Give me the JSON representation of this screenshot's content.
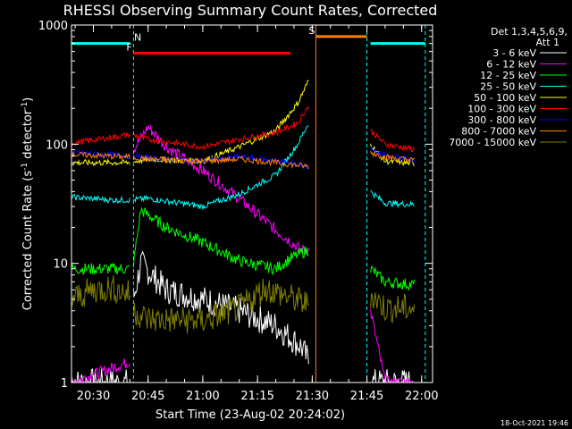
{
  "colors": {
    "background": "#000000",
    "axes": "#ffffff",
    "attenuator_bar": "#00ffff",
    "flare_bar": "#ff0000",
    "saa_bar": "#ff8000"
  },
  "chart_data": {
    "type": "line",
    "title": "RHESSI Observing Summary Count Rates, Corrected",
    "xlabel": "Start Time (23-Aug-02 20:24:02)",
    "ylabel": "Corrected Count Rate (s",
    "ylabel_sup1": "-1",
    "ylabel_mid": " detector",
    "ylabel_sup2": "-1",
    "ylabel_end": ")",
    "y_scale": "log",
    "ylim": [
      1,
      1000
    ],
    "xlim": [
      "20:24",
      "22:03"
    ],
    "x_ticks": [
      "20:30",
      "20:45",
      "21:00",
      "21:15",
      "21:30",
      "21:45",
      "22:00"
    ],
    "y_ticks": [
      "1",
      "10",
      "100",
      "1000"
    ],
    "legend_header": [
      "Det 1,3,4,5,6,9,",
      "Att 1"
    ],
    "legend_position": "top-right",
    "timestamp": "18-Oct-2021 19:46",
    "data_gaps": [
      [
        "20:40",
        "20:41"
      ],
      [
        "21:29",
        "21:46"
      ],
      [
        "21:58",
        "22:01"
      ]
    ],
    "bars": [
      {
        "label": "N",
        "color": "#00ffff",
        "value": 700,
        "segments": [
          [
            "20:24",
            "20:40"
          ],
          [
            "21:46",
            "22:01"
          ]
        ],
        "dashed_boundaries": [
          "20:41",
          "21:45",
          "22:01"
        ]
      },
      {
        "label": "F",
        "color": "#ff0000",
        "value": 580,
        "segments": [
          [
            "20:41",
            "21:24"
          ]
        ]
      },
      {
        "label": "S",
        "color": "#ff8000",
        "value": 800,
        "segments": [
          [
            "21:31",
            "21:45"
          ]
        ],
        "solid_boundaries": [
          "21:31"
        ]
      }
    ],
    "series": [
      {
        "name": "3 - 6 keV",
        "color": "#ffffff",
        "points": [
          [
            "20:24",
            1
          ],
          [
            "20:40",
            1
          ],
          [
            "20:41",
            5
          ],
          [
            "20:43",
            10
          ],
          [
            "20:46",
            8
          ],
          [
            "20:50",
            6
          ],
          [
            "21:00",
            5
          ],
          [
            "21:10",
            4
          ],
          [
            "21:20",
            3
          ],
          [
            "21:27",
            2
          ],
          [
            "21:29",
            1.5
          ],
          [
            "21:46",
            1
          ],
          [
            "21:55",
            1
          ],
          [
            "22:00",
            1
          ]
        ]
      },
      {
        "name": "6 - 12 keV",
        "color": "#ff00ff",
        "points": [
          [
            "20:24",
            1
          ],
          [
            "20:40",
            1.5
          ],
          [
            "20:41",
            90
          ],
          [
            "20:45",
            140
          ],
          [
            "20:50",
            95
          ],
          [
            "21:00",
            60
          ],
          [
            "21:10",
            35
          ],
          [
            "21:20",
            19
          ],
          [
            "21:27",
            13
          ],
          [
            "21:29",
            13
          ],
          [
            "21:46",
            4
          ],
          [
            "21:50",
            1
          ],
          [
            "22:00",
            1
          ]
        ]
      },
      {
        "name": "12 - 25 keV",
        "color": "#00ff00",
        "points": [
          [
            "20:24",
            9
          ],
          [
            "20:40",
            9
          ],
          [
            "20:41",
            10
          ],
          [
            "20:43",
            28
          ],
          [
            "20:50",
            20
          ],
          [
            "21:00",
            15
          ],
          [
            "21:10",
            10.5
          ],
          [
            "21:20",
            9
          ],
          [
            "21:24",
            11
          ],
          [
            "21:29",
            13
          ],
          [
            "21:46",
            9
          ],
          [
            "21:50",
            7
          ],
          [
            "22:00",
            6.5
          ]
        ]
      },
      {
        "name": "25 - 50 keV",
        "color": "#00ffff",
        "points": [
          [
            "20:24",
            36
          ],
          [
            "20:35",
            34
          ],
          [
            "20:40",
            34
          ],
          [
            "20:45",
            35
          ],
          [
            "21:00",
            30
          ],
          [
            "21:10",
            38
          ],
          [
            "21:20",
            55
          ],
          [
            "21:26",
            100
          ],
          [
            "21:29",
            150
          ],
          [
            "21:46",
            40
          ],
          [
            "21:50",
            32
          ],
          [
            "22:00",
            31
          ]
        ]
      },
      {
        "name": "50 - 100 keV",
        "color": "#ffff00",
        "points": [
          [
            "20:24",
            70
          ],
          [
            "20:40",
            70
          ],
          [
            "20:45",
            75
          ],
          [
            "21:00",
            72
          ],
          [
            "21:10",
            95
          ],
          [
            "21:20",
            130
          ],
          [
            "21:26",
            220
          ],
          [
            "21:29",
            340
          ],
          [
            "21:46",
            100
          ],
          [
            "21:50",
            72
          ],
          [
            "22:00",
            68
          ]
        ]
      },
      {
        "name": "100 - 300 keV",
        "color": "#ff0000",
        "points": [
          [
            "20:24",
            102
          ],
          [
            "20:40",
            120
          ],
          [
            "20:45",
            110
          ],
          [
            "21:00",
            95
          ],
          [
            "21:10",
            110
          ],
          [
            "21:20",
            125
          ],
          [
            "21:26",
            150
          ],
          [
            "21:29",
            210
          ],
          [
            "21:46",
            130
          ],
          [
            "21:50",
            100
          ],
          [
            "22:00",
            88
          ]
        ]
      },
      {
        "name": "300 - 800 keV",
        "color": "#0000ff",
        "points": [
          [
            "20:24",
            85
          ],
          [
            "20:40",
            80
          ],
          [
            "20:45",
            77
          ],
          [
            "21:00",
            72
          ],
          [
            "21:10",
            78
          ],
          [
            "21:20",
            73
          ],
          [
            "21:29",
            65
          ],
          [
            "21:46",
            90
          ],
          [
            "21:50",
            80
          ],
          [
            "22:00",
            72
          ]
        ]
      },
      {
        "name": "800 - 7000 keV",
        "color": "#ff8000",
        "points": [
          [
            "20:24",
            82
          ],
          [
            "20:40",
            78
          ],
          [
            "20:45",
            75
          ],
          [
            "21:00",
            72
          ],
          [
            "21:10",
            75
          ],
          [
            "21:20",
            70
          ],
          [
            "21:29",
            65
          ],
          [
            "21:46",
            85
          ],
          [
            "21:50",
            78
          ],
          [
            "22:00",
            72
          ]
        ]
      },
      {
        "name": "7000 - 15000 keV",
        "color": "#808000",
        "points": [
          [
            "20:24",
            5
          ],
          [
            "20:30",
            6
          ],
          [
            "20:35",
            6.2
          ],
          [
            "20:40",
            5.5
          ],
          [
            "20:41",
            4
          ],
          [
            "20:45",
            3.4
          ],
          [
            "21:00",
            3.3
          ],
          [
            "21:10",
            4.2
          ],
          [
            "21:17",
            6.2
          ],
          [
            "21:23",
            5.3
          ],
          [
            "21:29",
            4.5
          ],
          [
            "21:46",
            5.5
          ],
          [
            "21:50",
            4.2
          ],
          [
            "22:00",
            4.2
          ]
        ]
      }
    ]
  }
}
